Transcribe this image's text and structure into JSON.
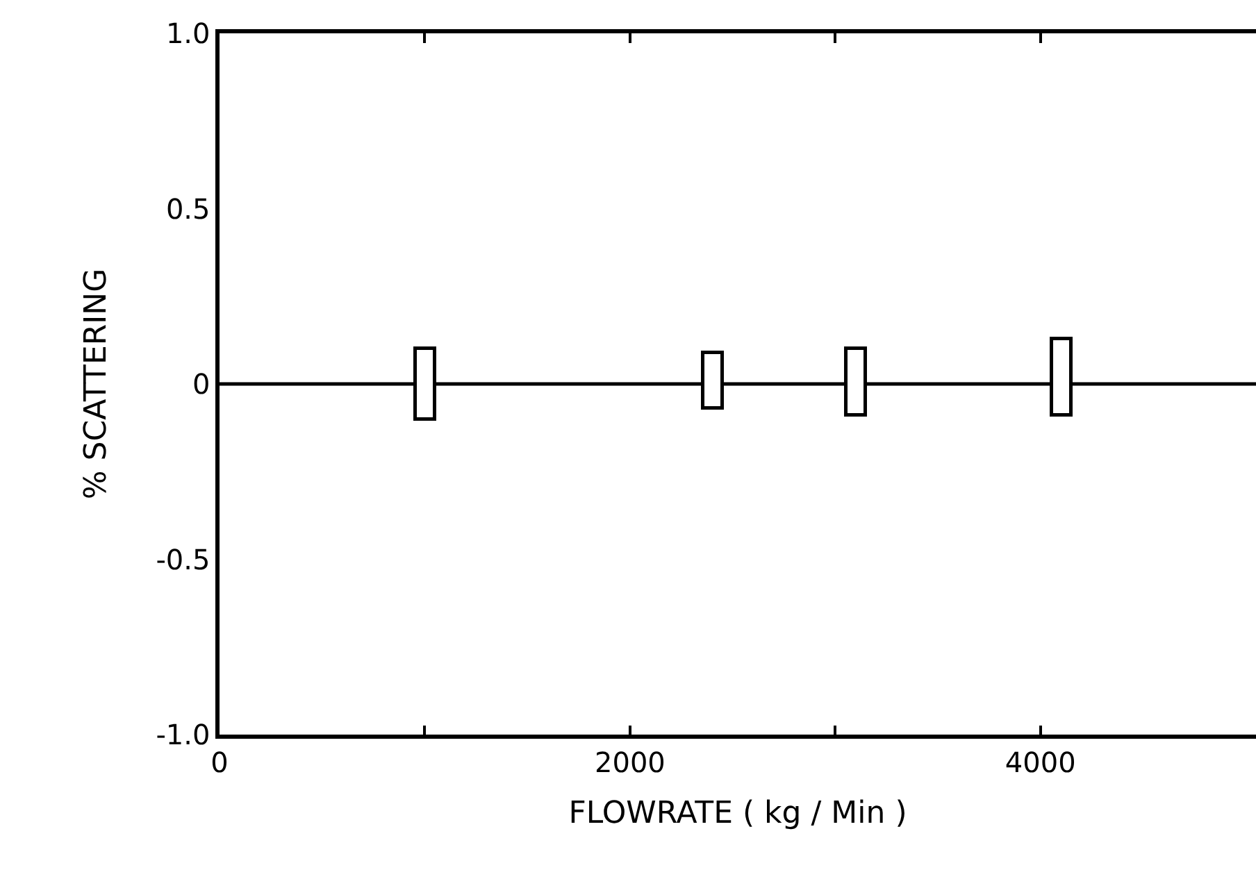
{
  "chart_data": {
    "type": "bar",
    "xlabel": "FLOWRATE ( kg / Min )",
    "ylabel": "% SCATTERING",
    "x": [
      1000,
      2400,
      3100,
      4100
    ],
    "base": [
      -0.1,
      -0.07,
      -0.09,
      -0.09
    ],
    "values": [
      0.2,
      0.16,
      0.19,
      0.22
    ],
    "color": "#ffffff",
    "xlim": [
      0,
      5050
    ],
    "xticks": [
      0,
      {
        "value": 1000,
        "label": null
      },
      2000,
      {
        "value": 3000,
        "label": null
      },
      4000
    ],
    "ylim": [
      -1,
      1
    ],
    "yticks": [
      {
        "value": -1,
        "label": "-1.0"
      },
      -0.5,
      0,
      0.5,
      {
        "value": 1,
        "label": "1.0"
      }
    ],
    "ref_lines": [
      {
        "axis": "y",
        "value": 0,
        "color": "#000000"
      }
    ],
    "grid": false
  }
}
